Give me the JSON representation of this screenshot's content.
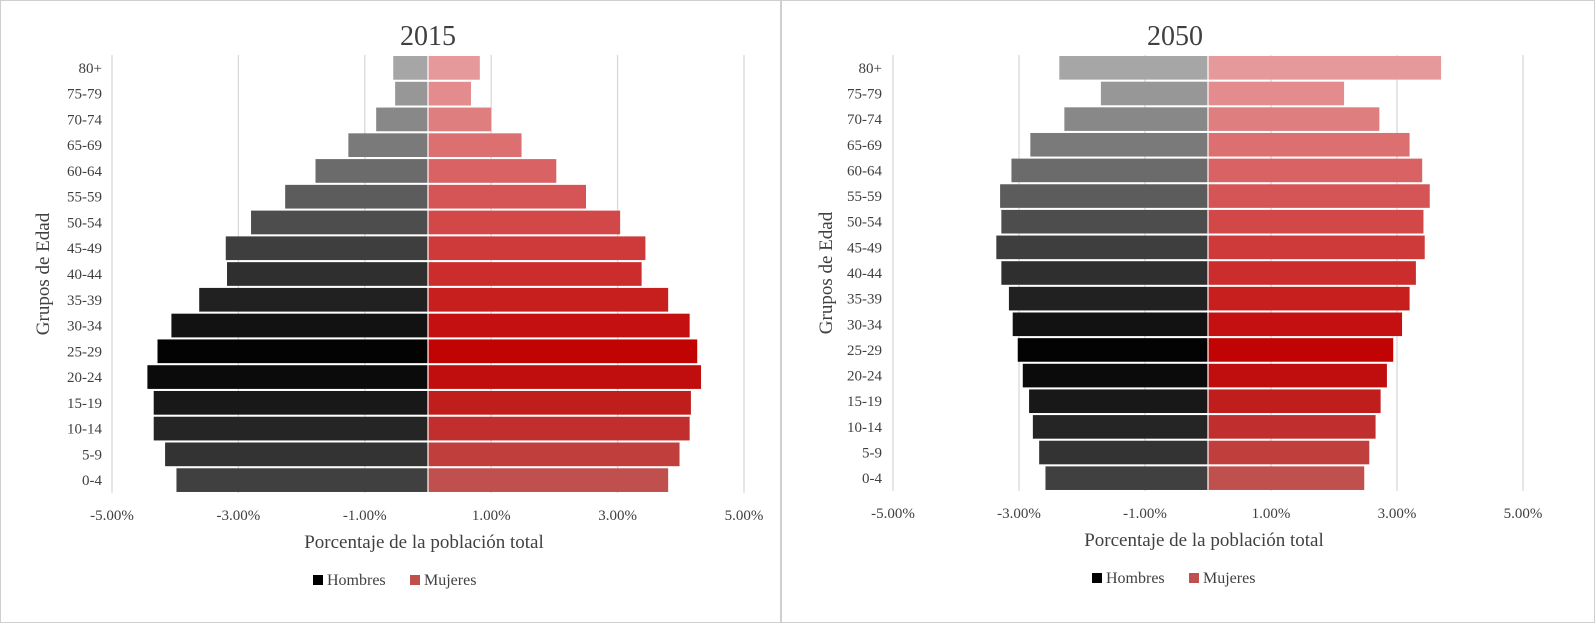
{
  "chart_data": [
    {
      "type": "bar",
      "orientation": "horizontal",
      "title": "2015",
      "xlabel": "Porcentaje de la población total",
      "ylabel": "Grupos de Edad",
      "xlim": [
        -5.5,
        5.5
      ],
      "xticks": [
        -5,
        -3,
        -1,
        1,
        3,
        5
      ],
      "xtick_labels": [
        "-5.00%",
        "-3.00%",
        "-1.00%",
        "1.00%",
        "3.00%",
        "5.00%"
      ],
      "grid": true,
      "legend_position": "bottom",
      "categories": [
        "80+",
        "75-79",
        "70-74",
        "65-69",
        "60-64",
        "55-59",
        "50-54",
        "45-49",
        "40-44",
        "35-39",
        "30-34",
        "25-29",
        "20-24",
        "15-19",
        "10-14",
        "5-9",
        "0-4"
      ],
      "series": [
        {
          "name": "Hombres",
          "color": "#000000",
          "values": [
            -0.55,
            -0.52,
            -0.82,
            -1.26,
            -1.78,
            -2.26,
            -2.8,
            -3.2,
            -3.18,
            -3.62,
            -4.06,
            -4.28,
            -4.44,
            -4.34,
            -4.34,
            -4.16,
            -3.98
          ]
        },
        {
          "name": "Mujeres",
          "color": "#c0504d",
          "values": [
            0.82,
            0.68,
            1.0,
            1.48,
            2.03,
            2.5,
            3.04,
            3.44,
            3.38,
            3.8,
            4.14,
            4.26,
            4.32,
            4.16,
            4.14,
            3.98,
            3.8
          ]
        }
      ]
    },
    {
      "type": "bar",
      "orientation": "horizontal",
      "title": "2050",
      "xlabel": "Porcentaje de la población total",
      "ylabel": "Grupos de Edad",
      "xlim": [
        -5.5,
        5.5
      ],
      "xticks": [
        -5,
        -3,
        -1,
        1,
        3,
        5
      ],
      "xtick_labels": [
        "-5.00%",
        "-3.00%",
        "-1.00%",
        "1.00%",
        "3.00%",
        "5.00%"
      ],
      "grid": true,
      "legend_position": "bottom",
      "categories": [
        "80+",
        "75-79",
        "70-74",
        "65-69",
        "60-64",
        "55-59",
        "50-54",
        "45-49",
        "40-44",
        "35-39",
        "30-34",
        "25-29",
        "20-24",
        "15-19",
        "10-14",
        "5-9",
        "0-4"
      ],
      "series": [
        {
          "name": "Hombres",
          "color": "#000000",
          "values": [
            -2.36,
            -1.7,
            -2.28,
            -2.82,
            -3.12,
            -3.3,
            -3.28,
            -3.36,
            -3.28,
            -3.16,
            -3.1,
            -3.02,
            -2.94,
            -2.84,
            -2.78,
            -2.68,
            -2.58
          ]
        },
        {
          "name": "Mujeres",
          "color": "#c0504d",
          "values": [
            3.7,
            2.16,
            2.72,
            3.2,
            3.4,
            3.52,
            3.42,
            3.44,
            3.3,
            3.2,
            3.08,
            2.94,
            2.84,
            2.74,
            2.66,
            2.56,
            2.48
          ]
        }
      ]
    }
  ],
  "legend": {
    "items": [
      "Hombres",
      "Mujeres"
    ]
  },
  "colors": {
    "hombres_ramp": [
      "#a6a6a6",
      "#000000",
      "#404040"
    ],
    "mujeres_ramp": [
      "#e6999b",
      "#c00000",
      "#c0504d"
    ]
  }
}
